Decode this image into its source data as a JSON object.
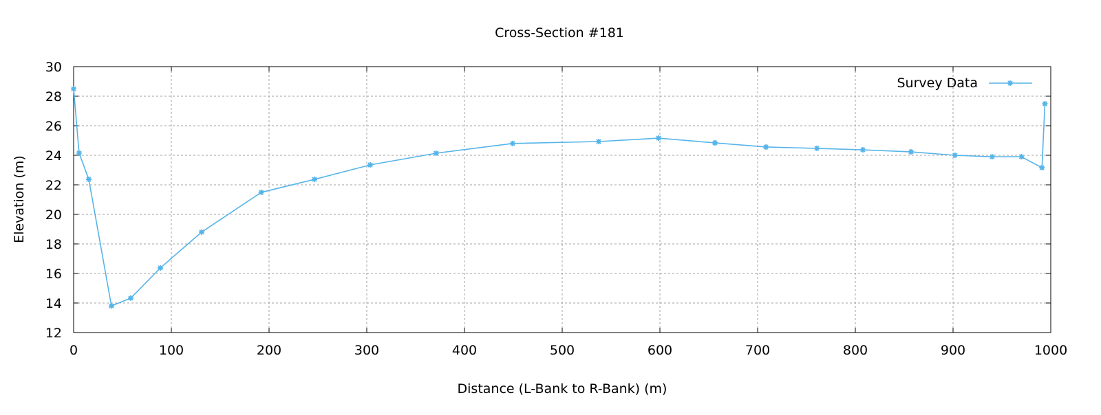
{
  "chart_data": {
    "type": "line",
    "title": "Cross-Section #181",
    "xlabel": "Distance (L-Bank to R-Bank) (m)",
    "ylabel": "Elevation (m)",
    "xlim": [
      0,
      1000
    ],
    "ylim": [
      12,
      30
    ],
    "xticks": [
      0,
      100,
      200,
      300,
      400,
      500,
      600,
      700,
      800,
      900,
      1000
    ],
    "yticks": [
      12,
      14,
      16,
      18,
      20,
      22,
      24,
      26,
      28,
      30
    ],
    "grid": true,
    "legend_position": "top-right",
    "series": [
      {
        "name": "Survey Data",
        "color": "#56b4e9",
        "x": [
          0,
          5.6,
          15.5,
          38.7,
          58.5,
          88.7,
          131,
          192,
          246.5,
          303.5,
          371,
          449.3,
          537.3,
          598.6,
          656.3,
          708.5,
          760.6,
          807.7,
          857,
          902,
          940,
          970,
          991,
          994
        ],
        "y": [
          28.5,
          24.15,
          22.37,
          13.8,
          14.33,
          16.37,
          18.8,
          21.49,
          22.37,
          23.35,
          24.14,
          24.8,
          24.93,
          25.16,
          24.84,
          24.56,
          24.47,
          24.37,
          24.23,
          24.0,
          23.9,
          23.9,
          23.16,
          27.49
        ]
      }
    ]
  }
}
